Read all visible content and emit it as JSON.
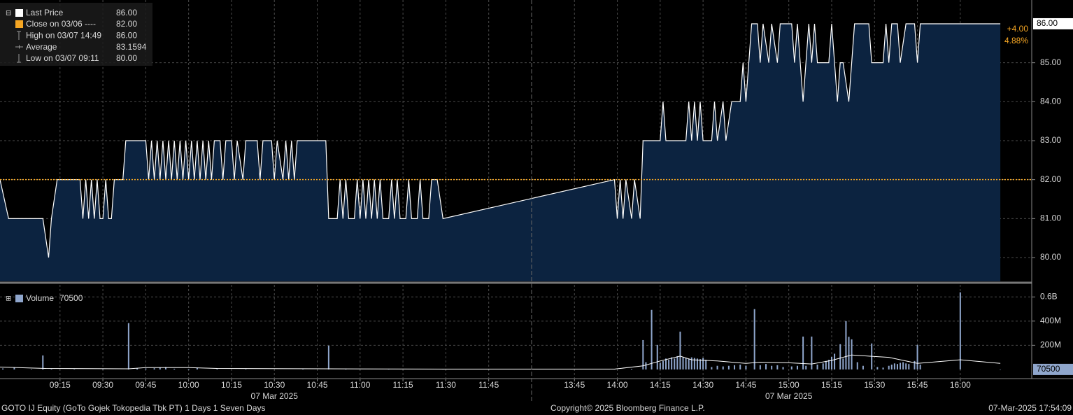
{
  "chart_data": [
    {
      "type": "area",
      "xlim": [
        "08:54",
        "16:25"
      ],
      "x_break": [
        "12:00",
        "13:30"
      ],
      "x": [
        "08:54",
        "08:57",
        "09:09",
        "09:11",
        "09:12",
        "09:14",
        "09:22",
        "09:23",
        "09:24",
        "09:25",
        "09:26",
        "09:27",
        "09:28",
        "09:29",
        "09:30",
        "09:31",
        "09:32",
        "09:33",
        "09:34",
        "09:37",
        "09:38",
        "09:45",
        "09:46",
        "09:47",
        "09:48",
        "09:49",
        "09:50",
        "09:51",
        "09:52",
        "09:53",
        "09:54",
        "09:55",
        "09:56",
        "09:57",
        "09:58",
        "09:59",
        "10:00",
        "10:01",
        "10:02",
        "10:03",
        "10:04",
        "10:05",
        "10:06",
        "10:07",
        "10:08",
        "10:09",
        "10:11",
        "10:12",
        "10:13",
        "10:15",
        "10:16",
        "10:17",
        "10:19",
        "10:20",
        "10:24",
        "10:25",
        "10:26",
        "10:29",
        "10:30",
        "10:31",
        "10:33",
        "10:34",
        "10:35",
        "10:36",
        "10:37",
        "10:38",
        "10:48",
        "10:49",
        "10:52",
        "10:53",
        "10:54",
        "10:55",
        "10:56",
        "10:58",
        "10:59",
        "11:00",
        "11:01",
        "11:02",
        "11:03",
        "11:04",
        "11:05",
        "11:06",
        "11:07",
        "11:08",
        "11:10",
        "11:11",
        "11:12",
        "11:13",
        "11:14",
        "11:16",
        "11:17",
        "11:18",
        "11:20",
        "11:21",
        "11:22",
        "11:24",
        "11:25",
        "11:27",
        "11:29",
        "13:59",
        "14:00",
        "14:01",
        "14:02",
        "14:03",
        "14:05",
        "14:06",
        "14:08",
        "14:09",
        "14:15",
        "14:16",
        "14:17",
        "14:24",
        "14:25",
        "14:26",
        "14:27",
        "14:28",
        "14:29",
        "14:30",
        "14:33",
        "14:34",
        "14:35",
        "14:37",
        "14:38",
        "14:40",
        "14:43",
        "14:44",
        "14:45",
        "14:46",
        "14:47",
        "14:49",
        "14:50",
        "14:51",
        "14:53",
        "14:54",
        "14:56",
        "14:57",
        "15:01",
        "15:02",
        "15:03",
        "15:05",
        "15:06",
        "15:07",
        "15:08",
        "15:09",
        "15:10",
        "15:14",
        "15:15",
        "15:17",
        "15:18",
        "15:19",
        "15:21",
        "15:22",
        "15:23",
        "15:28",
        "15:29",
        "15:33",
        "15:34",
        "15:35",
        "15:36",
        "15:38",
        "15:39",
        "15:41",
        "15:44",
        "15:45",
        "15:46",
        "16:14"
      ],
      "series": [
        {
          "name": "Last Price",
          "color": "#ffffff",
          "fill": "#0c2340",
          "legend_value": "86.00",
          "values": [
            82,
            81,
            81,
            80,
            81,
            82,
            82,
            81,
            82,
            81,
            82,
            81,
            82,
            81,
            81,
            82,
            81,
            81,
            82,
            82,
            83,
            83,
            82,
            83,
            82,
            83,
            82,
            83,
            82,
            83,
            82,
            83,
            82,
            83,
            82,
            83,
            82,
            83,
            82,
            83,
            82,
            83,
            82,
            83,
            82,
            83,
            83,
            82,
            83,
            83,
            82,
            83,
            82,
            83,
            83,
            82,
            83,
            83,
            82,
            83,
            82,
            83,
            82,
            83,
            82,
            83,
            83,
            81,
            81,
            82,
            81,
            82,
            81,
            81,
            82,
            81,
            82,
            81,
            82,
            81,
            82,
            81,
            82,
            81,
            81,
            82,
            81,
            82,
            81,
            81,
            82,
            81,
            81,
            82,
            81,
            81,
            82,
            82,
            81,
            82,
            81,
            82,
            81,
            82,
            81,
            82,
            81,
            83,
            83,
            84,
            83,
            83,
            84,
            83,
            84,
            83,
            84,
            83,
            83,
            84,
            83,
            84,
            83,
            84,
            84,
            85,
            84,
            85,
            86,
            86,
            85,
            86,
            85,
            86,
            85,
            86,
            86,
            85,
            86,
            84,
            85,
            86,
            85,
            86,
            85,
            85,
            86,
            84,
            85,
            85,
            84,
            85,
            86,
            86,
            85,
            85,
            86,
            85,
            86,
            86,
            85,
            86,
            86,
            85,
            86,
            86
          ]
        }
      ],
      "close": {
        "value": 82,
        "color": "#f5a623"
      },
      "legend": [
        {
          "label": "Close on 03/06 ----",
          "value": "82.00"
        },
        {
          "label": "High on 03/07 14:49",
          "value": "86.00"
        },
        {
          "label": "Average",
          "value": "83.1594"
        },
        {
          "label": "Low on 03/07 09:11",
          "value": "80.00"
        }
      ],
      "change": [
        "+4.00",
        "4.88%"
      ],
      "last_tag": {
        "value": 86,
        "label": "86.00"
      },
      "ylim": [
        79.39,
        86.61
      ],
      "yticks": [
        {
          "value": 80,
          "label": "80.00"
        },
        {
          "value": 81,
          "label": "81.00"
        },
        {
          "value": 82,
          "label": "82.00"
        },
        {
          "value": 83,
          "label": "83.00"
        },
        {
          "value": 84,
          "label": "84.00"
        },
        {
          "value": 85,
          "label": "85.00"
        }
      ],
      "grid": true
    },
    {
      "type": "bar",
      "xlim": [
        "08:54",
        "16:25"
      ],
      "x_break": [
        "12:00",
        "13:30"
      ],
      "xticks": [
        "09:15",
        "09:30",
        "09:45",
        "10:00",
        "10:15",
        "10:30",
        "10:45",
        "11:00",
        "11:15",
        "11:30",
        "11:45",
        "13:45",
        "14:00",
        "14:15",
        "14:30",
        "14:45",
        "15:00",
        "15:15",
        "15:30",
        "15:45",
        "16:00"
      ],
      "x_date_labels": [
        {
          "value": "10:30",
          "label": "07 Mar 2025"
        },
        {
          "value": "15:00",
          "label": "07 Mar 2025"
        }
      ],
      "x": [
        "08:55",
        "08:59",
        "09:05",
        "09:09",
        "09:12",
        "09:20",
        "09:30",
        "09:39",
        "09:42",
        "09:45",
        "09:48",
        "09:50",
        "09:52",
        "09:55",
        "10:00",
        "10:03",
        "10:10",
        "10:20",
        "10:40",
        "10:49",
        "10:55",
        "11:10",
        "11:29",
        "13:59",
        "14:05",
        "14:09",
        "14:10",
        "14:12",
        "14:14",
        "14:15",
        "14:16",
        "14:17",
        "14:18",
        "14:19",
        "14:20",
        "14:21",
        "14:22",
        "14:23",
        "14:24",
        "14:25",
        "14:26",
        "14:27",
        "14:28",
        "14:29",
        "14:30",
        "14:31",
        "14:33",
        "14:35",
        "14:37",
        "14:39",
        "14:41",
        "14:43",
        "14:45",
        "14:48",
        "14:50",
        "14:52",
        "14:54",
        "14:56",
        "14:58",
        "15:01",
        "15:03",
        "15:05",
        "15:06",
        "15:08",
        "15:10",
        "15:12",
        "15:13",
        "15:14",
        "15:15",
        "15:16",
        "15:18",
        "15:19",
        "15:20",
        "15:21",
        "15:22",
        "15:24",
        "15:26",
        "15:29",
        "15:31",
        "15:33",
        "15:35",
        "15:36",
        "15:37",
        "15:38",
        "15:39",
        "15:40",
        "15:41",
        "15:42",
        "15:44",
        "15:45",
        "15:46",
        "16:00",
        "16:14"
      ],
      "series": [
        {
          "name": "Volume",
          "color": "#8fa6cc",
          "values": [
            8000000,
            15000000,
            3000000,
            116000000,
            4000000,
            3000000,
            3000000,
            383000000,
            10000000,
            8000000,
            10000000,
            15000000,
            20000000,
            6000000,
            5000000,
            12000000,
            4000000,
            3000000,
            3000000,
            197000000,
            4000000,
            3000000,
            3000000,
            3000000,
            5000000,
            243000000,
            60000000,
            493000000,
            203000000,
            55000000,
            70000000,
            90000000,
            80000000,
            100000000,
            90000000,
            110000000,
            313000000,
            100000000,
            95000000,
            90000000,
            100000000,
            95000000,
            90000000,
            85000000,
            95000000,
            80000000,
            20000000,
            30000000,
            25000000,
            30000000,
            35000000,
            40000000,
            30000000,
            499000000,
            35000000,
            45000000,
            30000000,
            35000000,
            20000000,
            25000000,
            30000000,
            272000000,
            30000000,
            272000000,
            40000000,
            50000000,
            70000000,
            80000000,
            104000000,
            130000000,
            209000000,
            90000000,
            400000000,
            270000000,
            249000000,
            60000000,
            30000000,
            215000000,
            20000000,
            15000000,
            30000000,
            40000000,
            50000000,
            45000000,
            55000000,
            60000000,
            50000000,
            45000000,
            70000000,
            203000000,
            40000000,
            638000000,
            70500
          ]
        }
      ],
      "average": {
        "color": "#ffffff",
        "x": [
          "08:54",
          "09:10",
          "09:39",
          "09:45",
          "10:00",
          "10:10",
          "10:49",
          "11:29",
          "13:59",
          "14:09",
          "14:15",
          "14:22",
          "14:26",
          "14:35",
          "14:45",
          "14:50",
          "15:00",
          "15:08",
          "15:15",
          "15:22",
          "15:28",
          "15:35",
          "15:45",
          "16:00",
          "16:14"
        ],
        "values": [
          20000000,
          8000000,
          5000000,
          15000000,
          15000000,
          8000000,
          5000000,
          3000000,
          3000000,
          30000000,
          70000000,
          110000000,
          80000000,
          70000000,
          50000000,
          60000000,
          55000000,
          45000000,
          75000000,
          120000000,
          110000000,
          100000000,
          50000000,
          80000000,
          50104000
        ]
      },
      "last_tag": {
        "value": 70500,
        "label": "70500"
      },
      "ylim": [
        -70000000,
        700000000
      ],
      "yticks": [
        {
          "value": 200000000,
          "label": "200M"
        },
        {
          "value": 400000000,
          "label": "400M"
        },
        {
          "value": 600000000,
          "label": "0.6B"
        }
      ],
      "grid": true
    }
  ],
  "footer": {
    "left": "GOTO IJ Equity (GoTo Gojek Tokopedia Tbk PT) 1 Days 1 Seven Days",
    "center": "Copyright© 2025 Bloomberg Finance L.P.",
    "right": "07-Mar-2025 17:54:09"
  }
}
